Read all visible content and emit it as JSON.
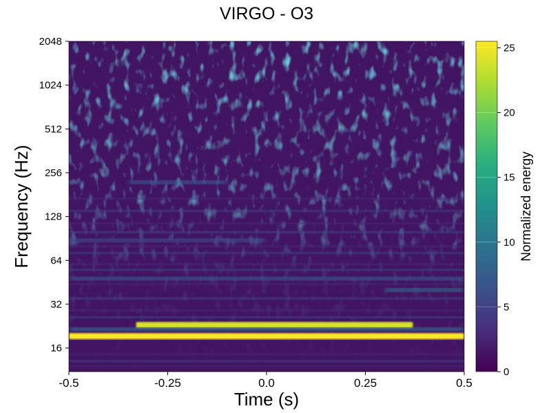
{
  "chart_data": {
    "type": "heatmap",
    "title": "VIRGO - O3",
    "xlabel": "Time (s)",
    "ylabel": "Frequency (Hz)",
    "xlim": [
      -0.5,
      0.5
    ],
    "ylim": [
      11,
      2048
    ],
    "yscale": "log2",
    "x_ticks": [
      -0.5,
      -0.25,
      0.0,
      0.25,
      0.5
    ],
    "x_tick_labels": [
      "-0.5",
      "-0.25",
      "0.0",
      "0.25",
      "0.5"
    ],
    "y_ticks": [
      16,
      32,
      64,
      128,
      256,
      512,
      1024,
      2048
    ],
    "y_tick_labels": [
      "16",
      "32",
      "64",
      "128",
      "256",
      "512",
      "1024",
      "2048"
    ],
    "colormap": "viridis",
    "colorbar": {
      "label": "Normalized energy",
      "range": [
        0,
        25.5
      ],
      "ticks": [
        0,
        5,
        10,
        15,
        20,
        25
      ],
      "tick_labels": [
        "0",
        "5",
        "10",
        "15",
        "20",
        "25"
      ]
    },
    "features": [
      {
        "kind": "band",
        "freq_hz": 19.3,
        "t_start": -0.5,
        "t_end": 0.5,
        "energy": 25.5
      },
      {
        "kind": "band",
        "freq_hz": 23.0,
        "t_start": -0.33,
        "t_end": 0.37,
        "energy": 24
      },
      {
        "kind": "band",
        "freq_hz": 21.5,
        "t_start": -0.5,
        "t_end": 0.5,
        "energy": 9
      },
      {
        "kind": "band",
        "freq_hz": 40,
        "t_start": 0.3,
        "t_end": 0.5,
        "energy": 9
      },
      {
        "kind": "band",
        "freq_hz": 48,
        "t_start": -0.5,
        "t_end": 0.5,
        "energy": 7
      },
      {
        "kind": "band",
        "freq_hz": 88,
        "t_start": -0.5,
        "t_end": 0.0,
        "energy": 6
      },
      {
        "kind": "band",
        "freq_hz": 220,
        "t_start": -0.35,
        "t_end": -0.1,
        "energy": 7
      }
    ]
  }
}
